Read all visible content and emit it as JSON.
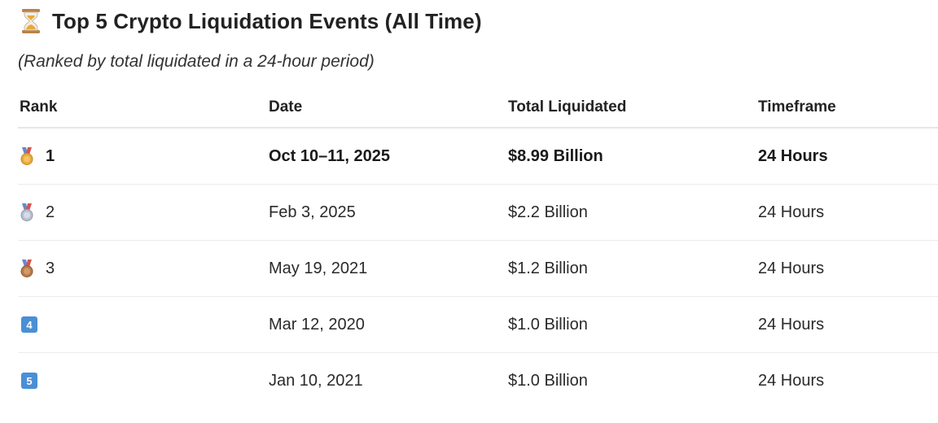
{
  "header": {
    "title": "Top 5 Crypto Liquidation Events (All Time)",
    "title_icon": "hourglass-icon",
    "subtitle": "(Ranked by total liquidated in a 24-hour period)"
  },
  "table": {
    "columns": [
      "Rank",
      "Date",
      "Total Liquidated",
      "Timeframe"
    ],
    "rows": [
      {
        "rank": "1",
        "badge": "gold-medal-icon",
        "date": "Oct 10–11, 2025",
        "total": "$8.99 Billion",
        "timeframe": "24 Hours",
        "bold": true
      },
      {
        "rank": "2",
        "badge": "silver-medal-icon",
        "date": "Feb 3, 2025",
        "total": "$2.2 Billion",
        "timeframe": "24 Hours"
      },
      {
        "rank": "3",
        "badge": "bronze-medal-icon",
        "date": "May 19, 2021",
        "total": "$1.2 Billion",
        "timeframe": "24 Hours"
      },
      {
        "rank": "4",
        "badge": "keycap-4-icon",
        "date": "Mar 12, 2020",
        "total": "$1.0 Billion",
        "timeframe": "24 Hours"
      },
      {
        "rank": "5",
        "badge": "keycap-5-icon",
        "date": "Jan 10, 2021",
        "total": "$1.0 Billion",
        "timeframe": "24 Hours"
      }
    ]
  },
  "colors": {
    "gold": "#e8a93a",
    "silver": "#b8bfd0",
    "bronze": "#b87a4b",
    "ribbon": "#6a86c9",
    "keycap": "#4a8fd6"
  }
}
